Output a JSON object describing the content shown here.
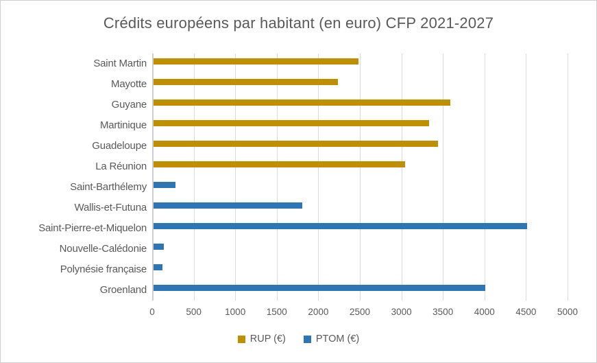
{
  "title": "Crédits européens par habitant (en euro) CFP 2021-2027",
  "colors": {
    "rup": "#BF8F00",
    "ptom": "#2E75B6",
    "text": "#595959",
    "gridline": "#D9D9D9",
    "axis_line": "#D0CECE",
    "background": "#FFFFFF",
    "frame_border": "#D0CECE"
  },
  "legend": {
    "items": [
      {
        "label": "RUP (€)",
        "color": "#BF8F00"
      },
      {
        "label": "PTOM (€)",
        "color": "#2E75B6"
      }
    ],
    "position": "bottom"
  },
  "chart_data": {
    "type": "bar",
    "orientation": "horizontal",
    "title": "Crédits européens par habitant (en euro) CFP 2021-2027",
    "categories": [
      "Saint Martin",
      "Mayotte",
      "Guyane",
      "Martinique",
      "Guadeloupe",
      "La Réunion",
      "Saint-Barthélemy",
      "Wallis-et-Futuna",
      "Saint-Pierre-et-Miquelon",
      "Nouvelle-Calédonie",
      "Polynésie française",
      "Groenland"
    ],
    "series": [
      {
        "name": "RUP (€)",
        "color": "#BF8F00",
        "values": [
          2470,
          2220,
          3570,
          3320,
          3420,
          3030,
          null,
          null,
          null,
          null,
          null,
          null
        ]
      },
      {
        "name": "PTOM (€)",
        "color": "#2E75B6",
        "values": [
          null,
          null,
          null,
          null,
          null,
          null,
          260,
          1790,
          4500,
          120,
          110,
          3990
        ]
      }
    ],
    "xlabel": "",
    "ylabel": "",
    "xlim": [
      0,
      5000
    ],
    "x_ticks": [
      0,
      500,
      1000,
      1500,
      2000,
      2500,
      3000,
      3500,
      4000,
      4500,
      5000
    ],
    "grid": true,
    "legend_position": "bottom"
  }
}
